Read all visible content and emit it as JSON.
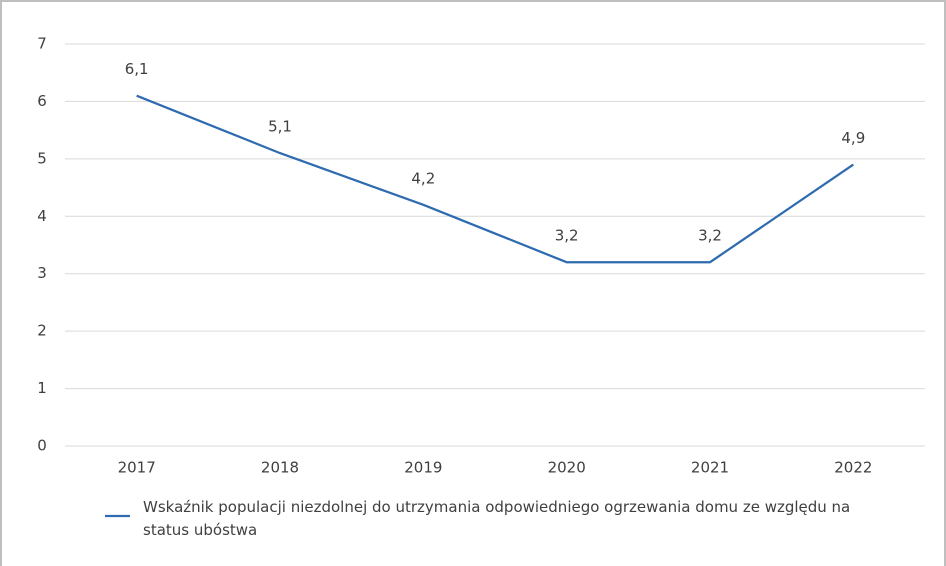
{
  "chart_data": {
    "type": "line",
    "categories": [
      "2017",
      "2018",
      "2019",
      "2020",
      "2021",
      "2022"
    ],
    "series": [
      {
        "name": "Wskaźnik populacji niezdolnej do utrzymania odpowiedniego ogrzewania domu ze względu na status ubóstwa",
        "color": "#2e6bb0",
        "values": [
          6.1,
          5.1,
          4.2,
          3.2,
          3.2,
          4.9
        ],
        "value_labels": [
          "6,1",
          "5,1",
          "4,2",
          "3,2",
          "3,2",
          "4,9"
        ]
      }
    ],
    "ylim": [
      0,
      7
    ],
    "yticks": [
      0,
      1,
      2,
      3,
      4,
      5,
      6,
      7
    ],
    "grid": true,
    "legend": "bottom"
  }
}
